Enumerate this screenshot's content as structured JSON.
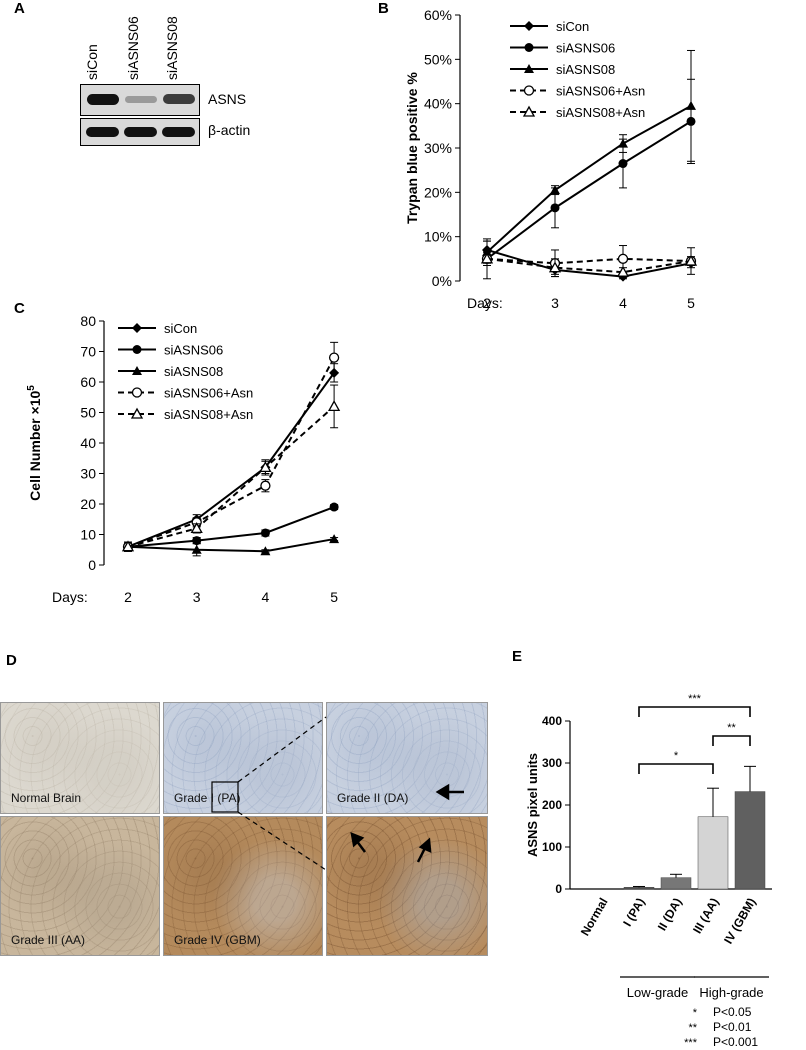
{
  "panels": {
    "A": "A",
    "B": "B",
    "C": "C",
    "D": "D",
    "E": "E"
  },
  "blot": {
    "lanes": [
      "siCon",
      "siASNS06",
      "siASNS08"
    ],
    "rows": [
      {
        "label": "ASNS",
        "intensity": [
          1.0,
          0.25,
          0.7
        ]
      },
      {
        "label": "β-actin",
        "intensity": [
          1.0,
          1.0,
          1.0
        ]
      }
    ]
  },
  "chart_data": [
    {
      "panel": "B",
      "type": "line",
      "ylabel": "Trypan blue positive %",
      "xlabel_prefix": "Days:",
      "x": [
        2,
        3,
        4,
        5
      ],
      "ylim": [
        0,
        60
      ],
      "yticks": [
        "0%",
        "10%",
        "20%",
        "30%",
        "40%",
        "50%",
        "60%"
      ],
      "series": [
        {
          "name": "siCon",
          "marker": "diamond",
          "dash": false,
          "values": [
            7,
            2.5,
            1,
            4
          ],
          "err": [
            2,
            1,
            0.5,
            1
          ]
        },
        {
          "name": "siASNS06",
          "marker": "circle",
          "dash": false,
          "values": [
            5,
            16.5,
            26.5,
            36
          ],
          "err": [
            4.5,
            4.5,
            5.5,
            9.5
          ]
        },
        {
          "name": "siASNS08",
          "marker": "triangle",
          "dash": false,
          "values": [
            6.5,
            20.5,
            31,
            39.5
          ],
          "err": [
            2.5,
            1,
            2,
            12.5
          ]
        },
        {
          "name": "siASNS06+Asn",
          "marker": "circle-open",
          "dash": true,
          "values": [
            5,
            4,
            5,
            4.5
          ],
          "err": [
            1.5,
            3,
            3,
            3
          ]
        },
        {
          "name": "siASNS08+Asn",
          "marker": "triangle-open",
          "dash": true,
          "values": [
            5,
            3,
            2,
            4.5
          ],
          "err": [
            1.5,
            2,
            1,
            1
          ]
        }
      ]
    },
    {
      "panel": "C",
      "type": "line",
      "ylabel": "Cell Number ×10",
      "ylabel_sup": "5",
      "xlabel_prefix": "Days:",
      "x": [
        2,
        3,
        4,
        5
      ],
      "ylim": [
        0,
        80
      ],
      "yticks": [
        "0",
        "10",
        "20",
        "30",
        "40",
        "50",
        "60",
        "70",
        "80"
      ],
      "series": [
        {
          "name": "siCon",
          "marker": "diamond",
          "dash": false,
          "values": [
            6,
            15,
            32,
            63
          ],
          "err": [
            1.5,
            1.5,
            2.5,
            3
          ]
        },
        {
          "name": "siASNS06",
          "marker": "circle",
          "dash": false,
          "values": [
            6,
            8,
            10.5,
            19
          ],
          "err": [
            1,
            1,
            1,
            0.8
          ]
        },
        {
          "name": "siASNS08",
          "marker": "triangle",
          "dash": false,
          "values": [
            6,
            5,
            4.5,
            8.5
          ],
          "err": [
            1.5,
            2,
            0.5,
            0.5
          ]
        },
        {
          "name": "siASNS06+Asn",
          "marker": "circle-open",
          "dash": true,
          "values": [
            6,
            14,
            26,
            68
          ],
          "err": [
            1.5,
            1.5,
            2,
            5
          ]
        },
        {
          "name": "siASNS08+Asn",
          "marker": "triangle-open",
          "dash": true,
          "values": [
            6,
            12,
            32,
            52
          ],
          "err": [
            1.5,
            1.5,
            2,
            7
          ]
        }
      ]
    },
    {
      "panel": "E",
      "type": "bar",
      "ylabel": "ASNS pixel units",
      "ylim": [
        0,
        400
      ],
      "yticks": [
        "0",
        "100",
        "200",
        "300",
        "400"
      ],
      "categories": [
        "Normal",
        "I (PA)",
        "II (DA)",
        "III (AA)",
        "IV (GBM)"
      ],
      "values": [
        0,
        4,
        27,
        172,
        232
      ],
      "err": [
        0,
        2,
        8,
        68,
        60
      ],
      "colors": [
        "#ffffff",
        "#555555",
        "#777777",
        "#d4d4d4",
        "#606060"
      ],
      "groups": [
        {
          "label": "Low-grade",
          "from": 1,
          "to": 2
        },
        {
          "label": "High-grade",
          "from": 3,
          "to": 4
        }
      ],
      "significance": [
        {
          "from": 1,
          "to": 3,
          "stars": "*"
        },
        {
          "from": 3,
          "to": 4,
          "stars": "**"
        },
        {
          "from": 1,
          "to": 4,
          "stars": "***"
        }
      ],
      "key": [
        {
          "stars": "*",
          "text": "P<0.05"
        },
        {
          "stars": "**",
          "text": "P<0.01"
        },
        {
          "stars": "***",
          "text": "P<0.001"
        }
      ]
    }
  ],
  "tissue": [
    {
      "label": "Normal Brain",
      "tone": "normal"
    },
    {
      "label": "Grade I (PA)",
      "tone": "blue"
    },
    {
      "label": "Grade II (DA)",
      "tone": "blue"
    },
    {
      "label": "Grade III (AA)",
      "tone": "mid"
    },
    {
      "label": "Grade IV (GBM)",
      "tone": "brown"
    },
    {
      "label": "",
      "tone": "brown-zoom"
    }
  ]
}
